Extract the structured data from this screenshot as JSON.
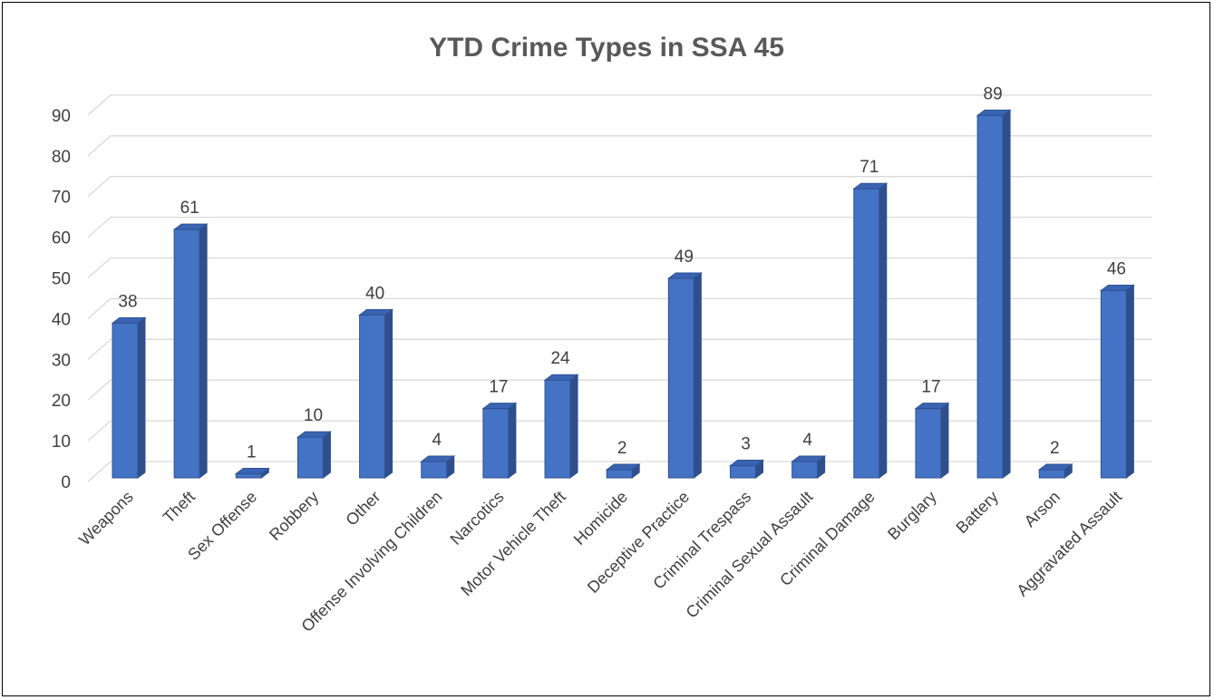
{
  "chart_data": {
    "type": "bar",
    "title": "YTD Crime Types in SSA 45",
    "xlabel": "",
    "ylabel": "",
    "ylim": [
      0,
      90
    ],
    "yticks": [
      0,
      10,
      20,
      30,
      40,
      50,
      60,
      70,
      80,
      90
    ],
    "grid": true,
    "legend": "none",
    "bar_color": "#4472c4",
    "categories": [
      "Weapons",
      "Theft",
      "Sex Offense",
      "Robbery",
      "Other",
      "Offense Involving Children",
      "Narcotics",
      "Motor Vehicle Theft",
      "Homicide",
      "Deceptive Practice",
      "Criminal Trespass",
      "Criminal Sexual Assault",
      "Criminal Damage",
      "Burglary",
      "Battery",
      "Arson",
      "Aggravated Assault"
    ],
    "values": [
      38,
      61,
      1,
      10,
      40,
      4,
      17,
      24,
      2,
      49,
      3,
      4,
      71,
      17,
      89,
      2,
      46
    ]
  }
}
